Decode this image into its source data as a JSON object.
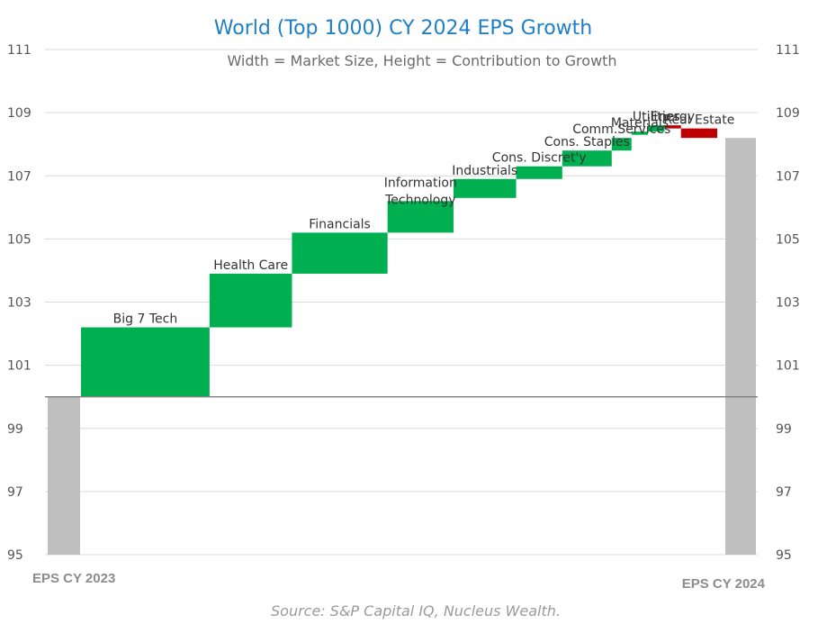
{
  "chart_data": {
    "type": "bar",
    "title": "World (Top 1000) CY 2024 EPS Growth",
    "subtitle": "Width = Market Size, Height = Contribution to Growth",
    "source": "Source: S&P Capital IQ, Nucleus Wealth.",
    "ylim": [
      95,
      111
    ],
    "yticks": [
      "95",
      "97",
      "99",
      "101",
      "103",
      "105",
      "107",
      "109",
      "111"
    ],
    "baseline": 100,
    "grid": true,
    "colors": {
      "increase": "#00b050",
      "decrease": "#c00000",
      "total": "#bfbfbf"
    },
    "start": {
      "label": "EPS CY 2023",
      "value": 100
    },
    "end": {
      "label": "EPS CY 2024",
      "value": 108.2
    },
    "segments": [
      {
        "label": "Big 7 Tech",
        "market_size": 19.5,
        "from": 100.0,
        "to": 102.2
      },
      {
        "label": "Health Care",
        "market_size": 12.5,
        "from": 102.2,
        "to": 103.9
      },
      {
        "label": "Financials",
        "market_size": 14.5,
        "from": 103.9,
        "to": 105.2
      },
      {
        "label": "Information Technology",
        "market_size": 10.0,
        "from": 105.2,
        "to": 106.2
      },
      {
        "label": "Industrials",
        "market_size": 9.5,
        "from": 106.3,
        "to": 106.9
      },
      {
        "label": "Cons. Discret'y",
        "market_size": 7.0,
        "from": 106.9,
        "to": 107.3
      },
      {
        "label": "Cons. Staples",
        "market_size": 7.5,
        "from": 107.3,
        "to": 107.8
      },
      {
        "label": "Comm.Services",
        "market_size": 3.0,
        "from": 107.8,
        "to": 108.2
      },
      {
        "label": "Materials",
        "market_size": 2.5,
        "from": 108.3,
        "to": 108.4
      },
      {
        "label": "Utilities",
        "market_size": 2.5,
        "from": 108.4,
        "to": 108.6
      },
      {
        "label": "Energy",
        "market_size": 2.5,
        "from": 108.6,
        "to": 108.5
      },
      {
        "label": "Real Estate",
        "market_size": 5.5,
        "from": 108.5,
        "to": 108.2
      }
    ]
  }
}
